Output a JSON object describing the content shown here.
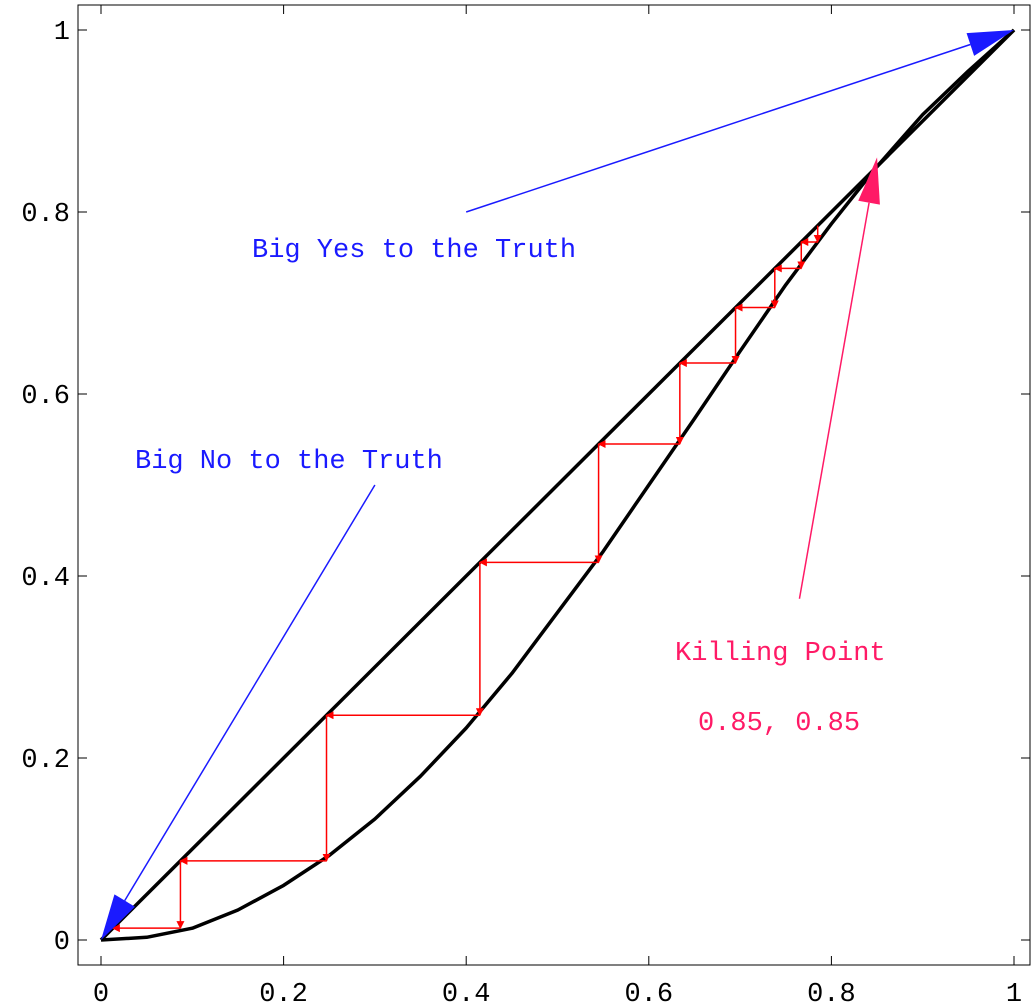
{
  "chart_data": {
    "type": "line",
    "title": "",
    "xlabel": "",
    "ylabel": "",
    "xlim": [
      0,
      1
    ],
    "ylim": [
      0,
      1
    ],
    "grid": false,
    "x_ticks": [
      "0",
      "0.2",
      "0.4",
      "0.6",
      "0.8",
      "1"
    ],
    "y_ticks": [
      "0",
      "0.2",
      "0.4",
      "0.6",
      "0.8",
      "1"
    ],
    "series": [
      {
        "values_x": [
          0,
          1
        ],
        "values_y": [
          0,
          1
        ],
        "color": "#000000"
      },
      {
        "values_x": [
          0,
          0.05,
          0.1,
          0.15,
          0.2,
          0.25,
          0.3,
          0.35,
          0.4,
          0.45,
          0.5,
          0.55,
          0.6,
          0.65,
          0.7,
          0.75,
          0.8,
          0.85,
          0.9,
          0.95,
          1
        ],
        "values_y": [
          0,
          0.003,
          0.013,
          0.033,
          0.06,
          0.093,
          0.133,
          0.18,
          0.233,
          0.293,
          0.36,
          0.427,
          0.5,
          0.573,
          0.647,
          0.72,
          0.787,
          0.85,
          0.907,
          0.955,
          1
        ],
        "color": "#000000"
      }
    ],
    "cobweb": {
      "color": "#ff0000",
      "points": [
        [
          0.785,
          0.785
        ],
        [
          0.767,
          0.767
        ],
        [
          0.738,
          0.738
        ],
        [
          0.695,
          0.695
        ],
        [
          0.634,
          0.634
        ],
        [
          0.545,
          0.545
        ],
        [
          0.415,
          0.415
        ],
        [
          0.247,
          0.247
        ],
        [
          0.087,
          0.087
        ],
        [
          0.013,
          0.013
        ]
      ]
    },
    "annotations": [
      {
        "id": "yes",
        "text": "Big Yes to the Truth",
        "color": "#1a1aff",
        "line_from": [
          0.4,
          0.8
        ],
        "arrow_to": [
          1,
          1
        ]
      },
      {
        "id": "no",
        "text": "Big No to the Truth",
        "color": "#1a1aff",
        "line_from": [
          0.3,
          0.5
        ],
        "arrow_to": [
          0,
          0
        ]
      },
      {
        "id": "kill",
        "text": "Killing Point",
        "value_text": "0.85, 0.85",
        "color": "#ff1a66",
        "line_from": [
          0.765,
          0.375
        ],
        "arrow_to": [
          0.85,
          0.86
        ]
      }
    ]
  }
}
